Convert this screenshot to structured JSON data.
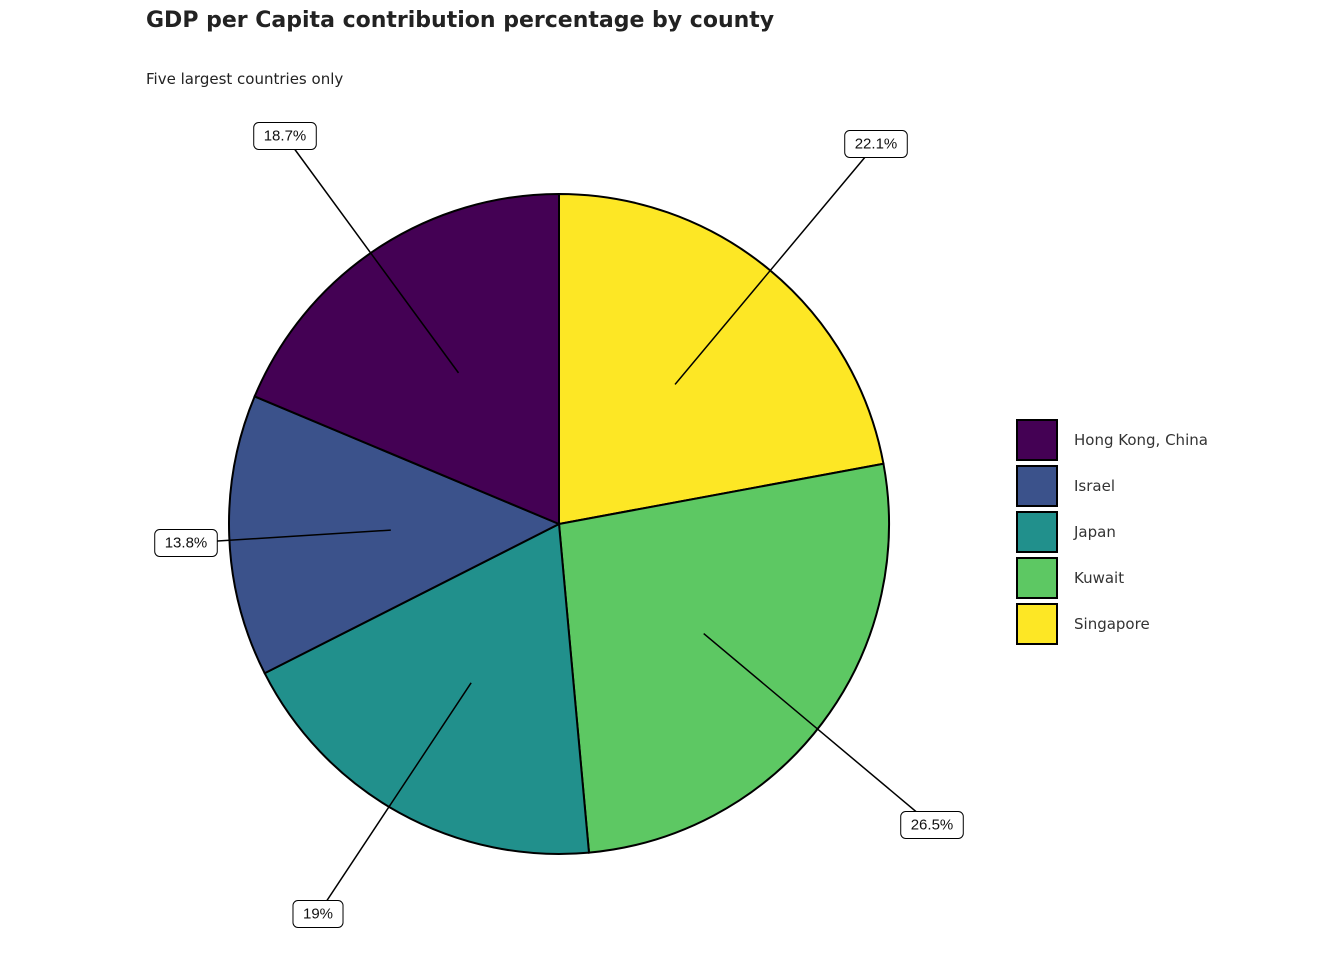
{
  "chart_data": {
    "type": "pie",
    "title": "GDP per Capita contribution percentage by county",
    "subtitle": "Five largest countries only",
    "categories": [
      "Singapore",
      "Kuwait",
      "Japan",
      "Israel",
      "Hong Kong, China"
    ],
    "values": [
      22.1,
      26.5,
      19,
      13.8,
      18.7
    ],
    "labels": [
      "22.1%",
      "26.5%",
      "19%",
      "13.8%",
      "18.7%"
    ],
    "colors": [
      "#FDE725",
      "#5DC863",
      "#21908C",
      "#3B528B",
      "#440154"
    ],
    "legend_position": "right",
    "legend": [
      {
        "name": "Hong Kong, China",
        "color": "#440154"
      },
      {
        "name": "Israel",
        "color": "#3B528B"
      },
      {
        "name": "Japan",
        "color": "#21908C"
      },
      {
        "name": "Kuwait",
        "color": "#5DC863"
      },
      {
        "name": "Singapore",
        "color": "#FDE725"
      }
    ]
  }
}
